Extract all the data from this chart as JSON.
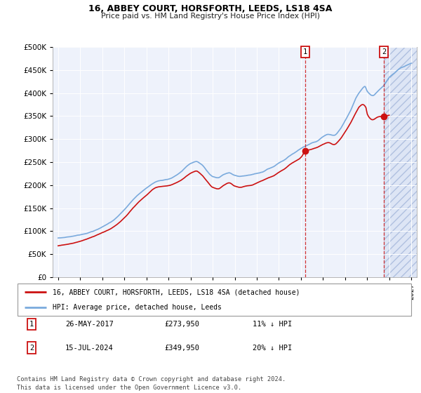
{
  "title": "16, ABBEY COURT, HORSFORTH, LEEDS, LS18 4SA",
  "subtitle": "Price paid vs. HM Land Registry's House Price Index (HPI)",
  "legend_label_red": "16, ABBEY COURT, HORSFORTH, LEEDS, LS18 4SA (detached house)",
  "legend_label_blue": "HPI: Average price, detached house, Leeds",
  "annotation1_date": "26-MAY-2017",
  "annotation1_price": "£273,950",
  "annotation1_hpi": "11% ↓ HPI",
  "annotation2_date": "15-JUL-2024",
  "annotation2_price": "£349,950",
  "annotation2_hpi": "20% ↓ HPI",
  "footer": "Contains HM Land Registry data © Crown copyright and database right 2024.\nThis data is licensed under the Open Government Licence v3.0.",
  "ylim": [
    0,
    500000
  ],
  "yticks": [
    0,
    50000,
    100000,
    150000,
    200000,
    250000,
    300000,
    350000,
    400000,
    450000,
    500000
  ],
  "plot1_date": 2017.4,
  "plot1_value": 273950,
  "plot2_date": 2024.54,
  "plot2_value": 349950,
  "bg_color": "#eef2fb",
  "hatch_bg_color": "#dde5f5",
  "color_red": "#cc1111",
  "color_blue": "#7aaadd",
  "xmin": 1994.5,
  "xmax": 2027.5
}
